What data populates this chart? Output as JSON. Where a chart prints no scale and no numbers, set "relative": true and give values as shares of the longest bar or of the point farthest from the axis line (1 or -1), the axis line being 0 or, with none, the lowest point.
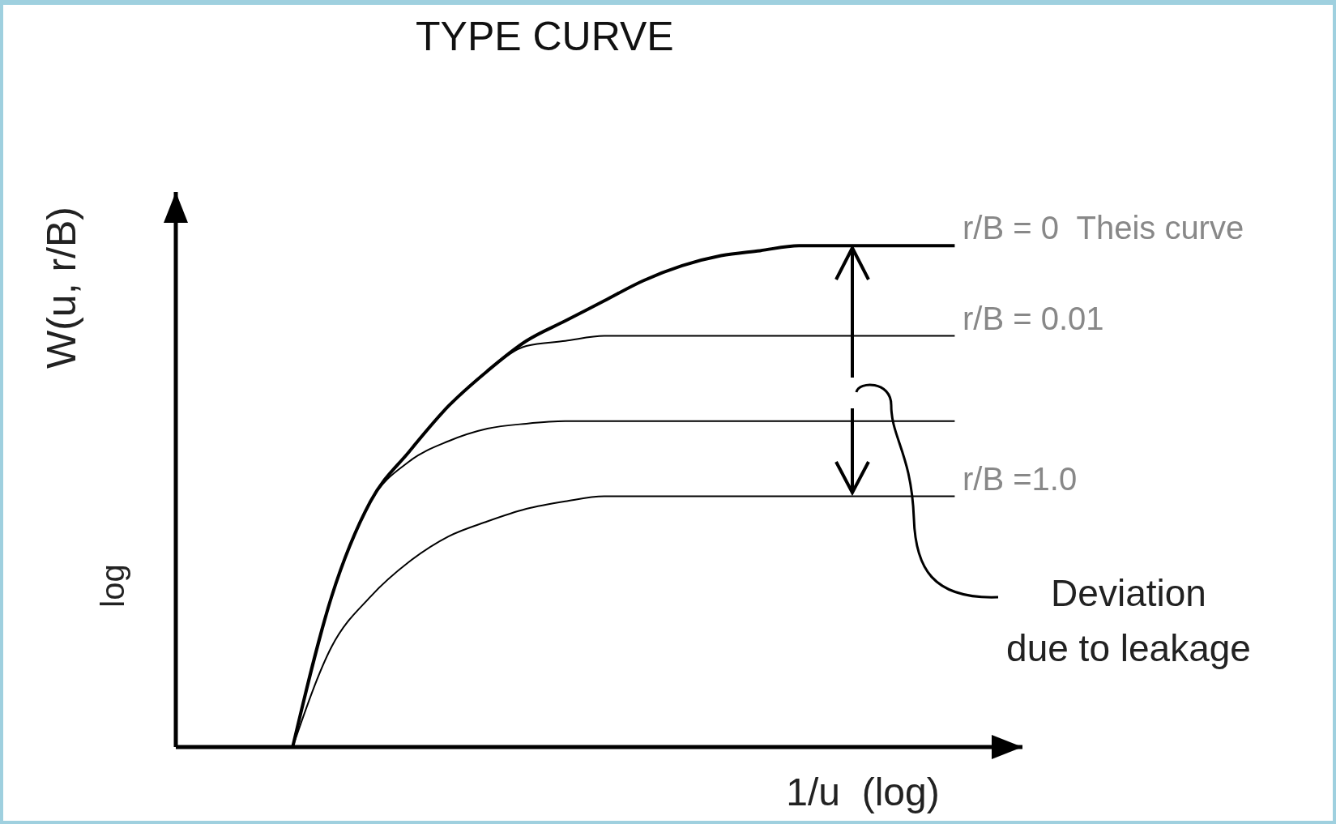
{
  "chart_data": {
    "type": "line",
    "title": "TYPE CURVE",
    "xlabel": "1/u  (log)",
    "ylabel": "W(u, r/B)",
    "relative": true,
    "marker": "none",
    "line_style": "solid",
    "categories": [
      null,
      null,
      null,
      null,
      null,
      null,
      null,
      null,
      null,
      null,
      null,
      null,
      null,
      null,
      null,
      null,
      null,
      null,
      null,
      null,
      null
    ],
    "series": [
      {
        "name": "r/B = 0  Theis curve",
        "color": "#000000",
        "values": [
          null,
          null,
          null,
          0,
          0.3,
          0.49,
          0.59,
          0.68,
          0.75,
          0.81,
          0.85,
          0.89,
          0.93,
          0.96,
          0.98,
          0.99,
          1,
          1,
          1,
          1,
          1
        ]
      },
      {
        "name": "r/B = 0.01",
        "color": "#000000",
        "values": [
          null,
          null,
          null,
          0,
          0.3,
          0.49,
          0.59,
          0.68,
          0.75,
          0.8,
          0.81,
          0.82,
          0.82,
          0.82,
          0.82,
          0.82,
          0.82,
          0.82,
          0.82,
          0.82,
          0.82
        ]
      },
      {
        "color": "#000000",
        "values": [
          null,
          null,
          null,
          0,
          0.3,
          0.49,
          0.57,
          0.61,
          0.635,
          0.645,
          0.65,
          0.65,
          0.65,
          0.65,
          0.65,
          0.65,
          0.65,
          0.65,
          0.65,
          0.65,
          0.65
        ]
      },
      {
        "name": "r/B =1.0",
        "color": "#000000",
        "values": [
          null,
          null,
          null,
          0,
          0.2,
          0.3,
          0.37,
          0.42,
          0.45,
          0.475,
          0.49,
          0.5,
          0.5,
          0.5,
          0.5,
          0.5,
          0.5,
          0.5,
          0.5,
          0.5,
          0.5
        ]
      }
    ],
    "annotations": [
      "log",
      "Deviation\ndue to leakage"
    ]
  }
}
